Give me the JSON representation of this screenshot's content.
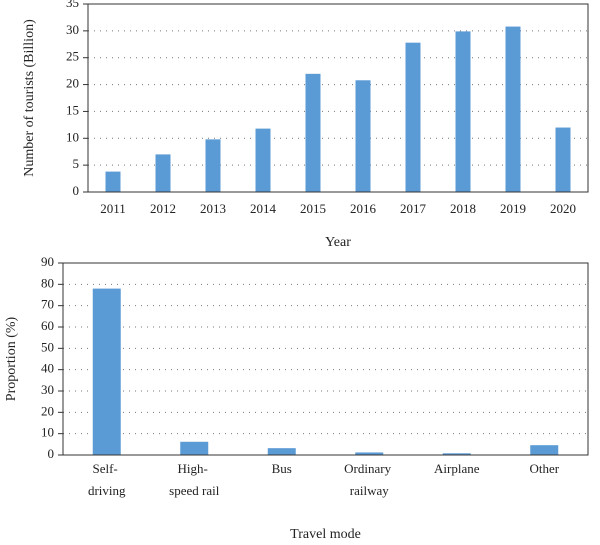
{
  "chart_data": [
    {
      "type": "bar",
      "x_label": "Year",
      "y_label": "Number of tourists (Billion)",
      "categories": [
        "2011",
        "2012",
        "2013",
        "2014",
        "2015",
        "2016",
        "2017",
        "2018",
        "2019",
        "2020"
      ],
      "values": [
        3.8,
        7,
        9.8,
        11.8,
        22,
        20.8,
        27.8,
        29.9,
        30.8,
        12
      ],
      "color": "#5b9bd5",
      "ylim": [
        0,
        35
      ],
      "yticks": [
        0,
        5,
        10,
        15,
        20,
        25,
        30,
        35
      ],
      "grid": true
    },
    {
      "type": "bar",
      "x_label": "Travel mode",
      "y_label": "Proportion (%)",
      "categories": [
        "Self-\ndriving",
        "High-\nspeed rail",
        "Bus",
        "Ordinary\nrailway",
        "Airplane",
        "Other"
      ],
      "values": [
        78,
        6.2,
        3.2,
        1.2,
        0.8,
        4.6
      ],
      "color": "#5b9bd5",
      "ylim": [
        0,
        90
      ],
      "yticks": [
        0,
        10,
        20,
        30,
        40,
        50,
        60,
        70,
        80,
        90
      ],
      "grid": true
    }
  ]
}
